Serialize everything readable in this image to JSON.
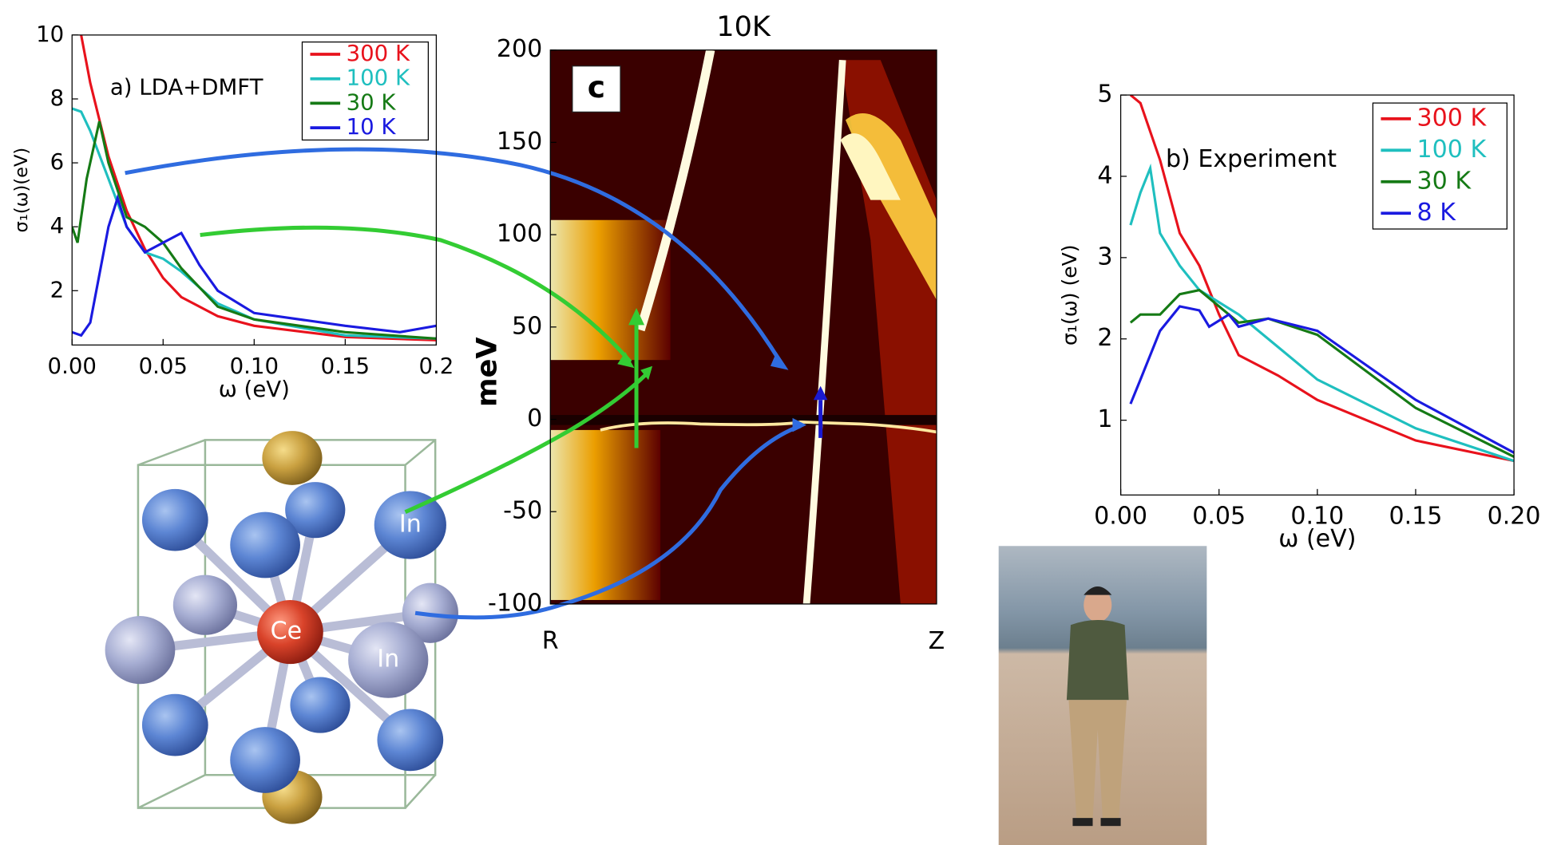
{
  "chart_data": [
    {
      "type": "line",
      "annotation": "a) LDA+DMFT",
      "ylabel": "σ₁(ω)(eV)",
      "xlabel": "ω (eV)",
      "xlim": [
        0,
        0.2
      ],
      "ylim": [
        0.3,
        10
      ],
      "xticks": [
        {
          "value": 0,
          "label": "0.00"
        },
        0.05,
        {
          "value": 0.1,
          "label": "0.10"
        },
        0.15,
        0.2
      ],
      "yticks": [
        2,
        4,
        6,
        8,
        10
      ],
      "legend": "upper right",
      "series": [
        {
          "name": "300 K",
          "color": "#e8121c",
          "x": [
            0.005,
            0.01,
            0.02,
            0.03,
            0.04,
            0.05,
            0.06,
            0.08,
            0.1,
            0.15,
            0.2
          ],
          "values": [
            10,
            8.5,
            6.2,
            4.5,
            3.3,
            2.4,
            1.8,
            1.2,
            0.9,
            0.55,
            0.45
          ]
        },
        {
          "name": "100 K",
          "color": "#1fbfbf",
          "x": [
            0,
            0.005,
            0.01,
            0.02,
            0.03,
            0.04,
            0.05,
            0.06,
            0.08,
            0.1,
            0.15,
            0.2
          ],
          "values": [
            7.7,
            7.6,
            7,
            5.5,
            4,
            3.2,
            3,
            2.6,
            1.6,
            1.1,
            0.6,
            0.5
          ]
        },
        {
          "name": "30 K",
          "color": "#157a15",
          "x": [
            0,
            0.003,
            0.008,
            0.015,
            0.02,
            0.03,
            0.04,
            0.05,
            0.06,
            0.08,
            0.1,
            0.15,
            0.2
          ],
          "values": [
            4,
            3.5,
            5.5,
            7.3,
            6,
            4.3,
            4,
            3.5,
            2.7,
            1.5,
            1.1,
            0.7,
            0.5
          ]
        },
        {
          "name": "10 K",
          "color": "#1a1ae0",
          "x": [
            0,
            0.005,
            0.01,
            0.02,
            0.025,
            0.03,
            0.04,
            0.05,
            0.06,
            0.07,
            0.08,
            0.1,
            0.15,
            0.18,
            0.2
          ],
          "values": [
            0.7,
            0.6,
            1,
            4,
            4.9,
            4,
            3.2,
            3.5,
            3.8,
            2.8,
            2,
            1.3,
            0.9,
            0.7,
            0.9
          ]
        }
      ]
    },
    {
      "type": "heatmap",
      "title": "10K",
      "annotation": "c",
      "ylabel": "meV",
      "categories": [
        "R",
        "Z"
      ],
      "ylim": [
        -100,
        200
      ],
      "yticks": [
        -100,
        -50,
        0,
        50,
        100,
        150,
        200
      ]
    },
    {
      "type": "line",
      "annotation": "b) Experiment",
      "ylabel": "σ₁(ω) (eV)",
      "xlabel": "ω (eV)",
      "xlim": [
        0,
        0.2
      ],
      "ylim": [
        0.08,
        5
      ],
      "xticks": [
        {
          "value": 0,
          "label": "0.00"
        },
        0.05,
        {
          "value": 0.1,
          "label": "0.10"
        },
        0.15,
        {
          "value": 0.2,
          "label": "0.20"
        }
      ],
      "yticks": [
        1,
        2,
        3,
        4,
        5
      ],
      "legend": "upper right",
      "series": [
        {
          "name": "300 K",
          "color": "#e8121c",
          "x": [
            0.005,
            0.01,
            0.02,
            0.03,
            0.04,
            0.05,
            0.06,
            0.08,
            0.1,
            0.15,
            0.2
          ],
          "values": [
            5,
            4.9,
            4.2,
            3.3,
            2.9,
            2.3,
            1.8,
            1.55,
            1.25,
            0.75,
            0.5
          ]
        },
        {
          "name": "100 K",
          "color": "#1fbfbf",
          "x": [
            0.005,
            0.01,
            0.015,
            0.02,
            0.03,
            0.04,
            0.05,
            0.06,
            0.08,
            0.1,
            0.15,
            0.2
          ],
          "values": [
            3.4,
            3.8,
            4.1,
            3.3,
            2.9,
            2.6,
            2.45,
            2.3,
            1.9,
            1.5,
            0.9,
            0.5
          ]
        },
        {
          "name": "30 K",
          "color": "#157a15",
          "x": [
            0.005,
            0.01,
            0.02,
            0.03,
            0.04,
            0.05,
            0.06,
            0.075,
            0.1,
            0.15,
            0.2
          ],
          "values": [
            2.2,
            2.3,
            2.3,
            2.55,
            2.6,
            2.4,
            2.2,
            2.25,
            2.05,
            1.15,
            0.55
          ]
        },
        {
          "name": "8 K",
          "color": "#1a1ae0",
          "x": [
            0.005,
            0.01,
            0.02,
            0.03,
            0.04,
            0.045,
            0.055,
            0.06,
            0.075,
            0.1,
            0.15,
            0.2
          ],
          "values": [
            1.2,
            1.5,
            2.1,
            2.4,
            2.35,
            2.15,
            2.3,
            2.15,
            2.25,
            2.1,
            1.25,
            0.6
          ]
        }
      ]
    }
  ],
  "structure": {
    "labels": [
      "In",
      "Ce",
      "In"
    ]
  }
}
